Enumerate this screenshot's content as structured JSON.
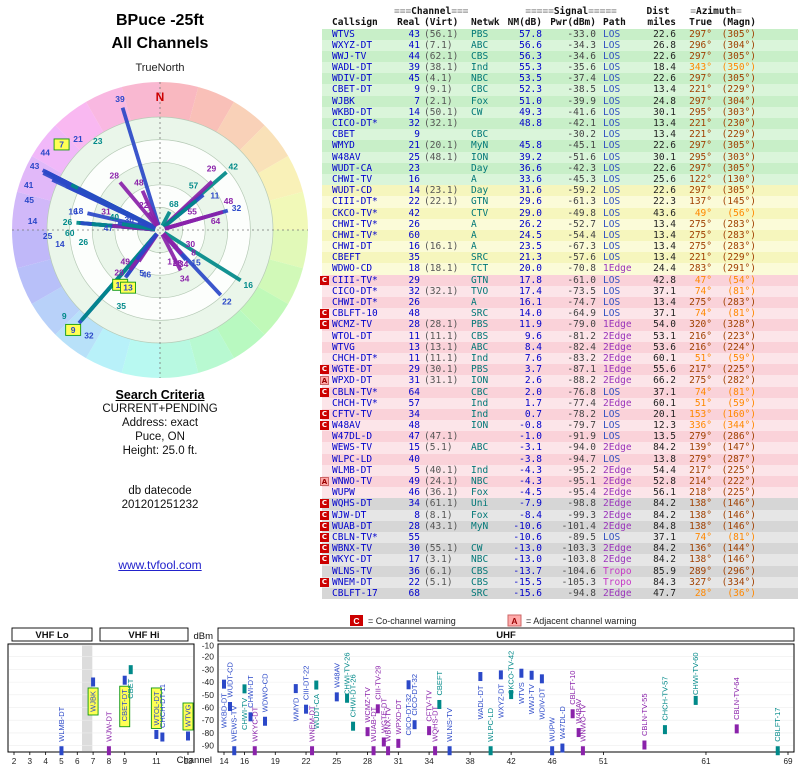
{
  "title": {
    "line1": "BPuce -25ft",
    "line2": "All Channels"
  },
  "radar": {
    "true_north": "TrueNorth",
    "north_label": "N"
  },
  "criteria": {
    "heading": "Search Criteria",
    "lines": [
      "CURRENT+PENDING",
      "Address: exact",
      "Puce, ON",
      "Height: 25.0 ft."
    ],
    "db_label": "db datecode",
    "db_code": "201201251232"
  },
  "link": "www.tvfool.com",
  "legend": {
    "c_label": "C",
    "c_text": "= Co-channel warning",
    "a_label": "A",
    "a_text": "= Adjacent channel warning"
  },
  "colors": {
    "warn_c": "#cc0000",
    "warn_a": "#ffaaaa",
    "link": "#2222cc",
    "north": "#cc0000",
    "highlight": "#ffff55",
    "los": "#2f4fc0",
    "edge": "#9a34bb",
    "tropo": "#c73bc7",
    "station_blue": "#2b48c8",
    "station_teal": "#008989",
    "station_purple": "#8a22aa",
    "az_normal": "#a04000",
    "az_hot": "#ff8800"
  },
  "table": {
    "group_headers": {
      "ch_bars_l": "≡≡≡",
      "channel": "Channel",
      "ch_bars_r": "≡≡≡",
      "sig_bars_l": "≡≡≡≡≡",
      "signal": "Signal",
      "sig_bars_r": "≡≡≡≡≡",
      "dist": "Dist",
      "az_bars_l": "≡",
      "azimuth": "Azimuth",
      "az_bars_r": "≡"
    },
    "col_headers": {
      "callsign": "Callsign",
      "real": "Real",
      "virt": "(Virt)",
      "netwk": "Netwk",
      "nm": "NM(dB)",
      "pwr": "Pwr(dBm)",
      "path": "Path",
      "miles": "miles",
      "true": "True",
      "magn": "(Magn)"
    },
    "row_fields": [
      "callsign",
      "real_ch",
      "virt_ch",
      "network",
      "nm_db",
      "pwr_dbm",
      "path",
      "dist_miles",
      "azimuth_true",
      "azimuth_magn",
      "warning",
      "azimuth_highlighted",
      "station_highlighted"
    ],
    "rows": [
      [
        "WTVS",
        "43",
        "(56.1)",
        "PBS",
        "57.8",
        "-33.0",
        "LOS",
        "22.6",
        "297°",
        "(305°)",
        "",
        0,
        0
      ],
      [
        "WXYZ-DT",
        "41",
        "(7.1)",
        "ABC",
        "56.6",
        "-34.3",
        "LOS",
        "26.8",
        "296°",
        "(304°)",
        "",
        0,
        0
      ],
      [
        "WWJ-TV",
        "44",
        "(62.1)",
        "CBS",
        "56.3",
        "-34.6",
        "LOS",
        "22.6",
        "297°",
        "(305°)",
        "",
        0,
        0
      ],
      [
        "WADL-DT",
        "39",
        "(38.1)",
        "Ind",
        "55.3",
        "-35.6",
        "LOS",
        "18.4",
        "343°",
        "(350°)",
        "",
        1,
        0
      ],
      [
        "WDIV-DT",
        "45",
        "(4.1)",
        "NBC",
        "53.5",
        "-37.4",
        "LOS",
        "22.6",
        "297°",
        "(305°)",
        "",
        0,
        0
      ],
      [
        "CBET-DT",
        "9",
        "(9.1)",
        "CBC",
        "52.3",
        "-38.5",
        "LOS",
        "13.4",
        "221°",
        "(229°)",
        "",
        0,
        1
      ],
      [
        "WJBK",
        "7",
        "(2.1)",
        "Fox",
        "51.0",
        "-39.9",
        "LOS",
        "24.8",
        "297°",
        "(304°)",
        "",
        0,
        1
      ],
      [
        "WKBD-DT",
        "14",
        "(50.1)",
        "CW",
        "49.3",
        "-41.6",
        "LOS",
        "30.1",
        "295°",
        "(303°)",
        "",
        0,
        0
      ],
      [
        "CICO-DT*",
        "32",
        "(32.1)",
        "",
        "48.8",
        "-42.1",
        "LOS",
        "13.4",
        "221°",
        "(230°)",
        "",
        0,
        0
      ],
      [
        "CBET",
        "9",
        "",
        "CBC",
        "",
        "-30.2",
        "LOS",
        "13.4",
        "221°",
        "(229°)",
        "",
        0,
        0
      ],
      [
        "WMYD",
        "21",
        "(20.1)",
        "MyN",
        "45.8",
        "-45.1",
        "LOS",
        "22.6",
        "297°",
        "(305°)",
        "",
        0,
        0
      ],
      [
        "W48AV",
        "25",
        "(48.1)",
        "ION",
        "39.2",
        "-51.6",
        "LOS",
        "30.1",
        "295°",
        "(303°)",
        "",
        0,
        0
      ],
      [
        "WUDT-CA",
        "23",
        "",
        "Day",
        "36.6",
        "-42.3",
        "LOS",
        "22.6",
        "297°",
        "(305°)",
        "",
        0,
        0
      ],
      [
        "CHWI-TV",
        "16",
        "",
        "A",
        "33.6",
        "-45.3",
        "LOS",
        "25.6",
        "122°",
        "(130°)",
        "",
        0,
        0
      ],
      [
        "WUDT-CD",
        "14",
        "(23.1)",
        "Day",
        "31.6",
        "-59.2",
        "LOS",
        "22.6",
        "297°",
        "(305°)",
        "",
        0,
        0
      ],
      [
        "CIII-DT*",
        "22",
        "(22.1)",
        "GTN",
        "29.6",
        "-61.3",
        "LOS",
        "22.3",
        "137°",
        "(145°)",
        "",
        0,
        0
      ],
      [
        "CKCO-TV*",
        "42",
        "",
        "CTV",
        "29.0",
        "-49.8",
        "LOS",
        "43.6",
        "49°",
        "(56°)",
        "",
        1,
        0
      ],
      [
        "CHWI-TV*",
        "26",
        "",
        "A",
        "26.2",
        "-52.7",
        "LOS",
        "13.4",
        "275°",
        "(283°)",
        "",
        0,
        0
      ],
      [
        "CHWI-TV*",
        "60",
        "",
        "A",
        "24.5",
        "-54.4",
        "LOS",
        "13.4",
        "275°",
        "(283°)",
        "",
        0,
        0
      ],
      [
        "CHWI-DT",
        "16",
        "(16.1)",
        "A",
        "23.5",
        "-67.3",
        "LOS",
        "13.4",
        "275°",
        "(283°)",
        "",
        0,
        0
      ],
      [
        "CBEFT",
        "35",
        "",
        "SRC",
        "21.3",
        "-57.6",
        "LOS",
        "13.4",
        "221°",
        "(229°)",
        "",
        0,
        0
      ],
      [
        "WDWO-CD",
        "18",
        "(18.1)",
        "TCT",
        "20.0",
        "-70.8",
        "1Edge",
        "24.4",
        "283°",
        "(291°)",
        "",
        0,
        0
      ],
      [
        "CIII-TV*",
        "29",
        "",
        "GTN",
        "17.8",
        "-61.0",
        "LOS",
        "42.8",
        "47°",
        "(54°)",
        "C",
        1,
        0
      ],
      [
        "CICO-DT*",
        "32",
        "(32.1)",
        "TVO",
        "17.4",
        "-73.5",
        "LOS",
        "37.1",
        "74°",
        "(81°)",
        "",
        1,
        0
      ],
      [
        "CHWI-DT*",
        "26",
        "",
        "A",
        "16.1",
        "-74.7",
        "LOS",
        "13.4",
        "275°",
        "(283°)",
        "",
        0,
        0
      ],
      [
        "CBLFT-10",
        "48",
        "",
        "SRC",
        "14.0",
        "-64.9",
        "LOS",
        "37.1",
        "74°",
        "(81°)",
        "C",
        1,
        0
      ],
      [
        "WCMZ-TV",
        "28",
        "(28.1)",
        "PBS",
        "11.9",
        "-79.0",
        "1Edge",
        "54.0",
        "320°",
        "(328°)",
        "C",
        0,
        0
      ],
      [
        "WTOL-DT",
        "11",
        "(11.1)",
        "CBS",
        "9.6",
        "-81.2",
        "2Edge",
        "53.1",
        "216°",
        "(223°)",
        "",
        0,
        1
      ],
      [
        "WTVG",
        "13",
        "(13.1)",
        "ABC",
        "8.4",
        "-82.4",
        "2Edge",
        "53.6",
        "216°",
        "(224°)",
        "",
        0,
        1
      ],
      [
        "CHCH-DT*",
        "11",
        "(11.1)",
        "Ind",
        "7.6",
        "-83.2",
        "2Edge",
        "60.1",
        "51°",
        "(59°)",
        "",
        1,
        0
      ],
      [
        "WGTE-DT",
        "29",
        "(30.1)",
        "PBS",
        "3.7",
        "-87.1",
        "1Edge",
        "55.6",
        "217°",
        "(225°)",
        "C",
        0,
        0
      ],
      [
        "WPXD-DT",
        "31",
        "(31.1)",
        "ION",
        "2.6",
        "-88.2",
        "2Edge",
        "66.2",
        "275°",
        "(282°)",
        "A",
        0,
        0
      ],
      [
        "CBLN-TV*",
        "64",
        "",
        "CBC",
        "2.0",
        "-76.8",
        "LOS",
        "37.1",
        "74°",
        "(81°)",
        "C",
        1,
        0
      ],
      [
        "CHCH-TV*",
        "57",
        "",
        "Ind",
        "1.7",
        "-77.4",
        "2Edge",
        "60.1",
        "51°",
        "(59°)",
        "",
        1,
        0
      ],
      [
        "CFTV-TV",
        "34",
        "",
        "Ind",
        "0.7",
        "-78.2",
        "LOS",
        "20.1",
        "153°",
        "(160°)",
        "C",
        1,
        0
      ],
      [
        "W48AV",
        "48",
        "",
        "ION",
        "-0.8",
        "-79.7",
        "LOS",
        "12.3",
        "336°",
        "(344°)",
        "C",
        1,
        0
      ],
      [
        "W47DL-D",
        "47",
        "(47.1)",
        "",
        "-1.0",
        "-91.9",
        "LOS",
        "13.5",
        "279°",
        "(286°)",
        "",
        0,
        0
      ],
      [
        "WEWS-TV",
        "15",
        "(5.1)",
        "ABC",
        "-3.1",
        "-94.0",
        "2Edge",
        "84.2",
        "139°",
        "(147°)",
        "",
        0,
        0
      ],
      [
        "WLPC-LD",
        "40",
        "",
        "",
        "-3.8",
        "-94.7",
        "LOS",
        "13.8",
        "279°",
        "(287°)",
        "",
        0,
        0
      ],
      [
        "WLMB-DT",
        "5",
        "(40.1)",
        "Ind",
        "-4.3",
        "-95.2",
        "2Edge",
        "54.4",
        "217°",
        "(225°)",
        "",
        0,
        0
      ],
      [
        "WNWO-TV",
        "49",
        "(24.1)",
        "NBC",
        "-4.3",
        "-95.1",
        "2Edge",
        "52.8",
        "214°",
        "(222°)",
        "A",
        0,
        0
      ],
      [
        "WUPW",
        "46",
        "(36.1)",
        "Fox",
        "-4.5",
        "-95.4",
        "2Edge",
        "56.1",
        "218°",
        "(225°)",
        "",
        0,
        0
      ],
      [
        "WQHS-DT",
        "34",
        "(61.1)",
        "Uni",
        "-7.9",
        "-98.8",
        "2Edge",
        "84.2",
        "138°",
        "(146°)",
        "C",
        0,
        0
      ],
      [
        "WJW-DT",
        "8",
        "(8.1)",
        "Fox",
        "-8.4",
        "-99.3",
        "2Edge",
        "84.2",
        "138°",
        "(146°)",
        "C",
        0,
        0
      ],
      [
        "WUAB-DT",
        "28",
        "(43.1)",
        "MyN",
        "-10.6",
        "-101.4",
        "2Edge",
        "84.8",
        "138°",
        "(146°)",
        "C",
        0,
        0
      ],
      [
        "CBLN-TV*",
        "55",
        "",
        "",
        "-10.6",
        "-89.5",
        "LOS",
        "37.1",
        "74°",
        "(81°)",
        "C",
        1,
        0
      ],
      [
        "WBNX-TV",
        "30",
        "(55.1)",
        "CW",
        "-13.0",
        "-103.3",
        "2Edge",
        "84.2",
        "136°",
        "(144°)",
        "C",
        0,
        0
      ],
      [
        "WKYC-DT",
        "17",
        "(3.1)",
        "NBC",
        "-13.0",
        "-103.8",
        "2Edge",
        "84.2",
        "138°",
        "(146°)",
        "C",
        0,
        0
      ],
      [
        "WLNS-TV",
        "36",
        "(6.1)",
        "CBS",
        "-13.7",
        "-104.6",
        "Tropo",
        "85.9",
        "289°",
        "(296°)",
        "",
        0,
        0
      ],
      [
        "WNEM-DT",
        "22",
        "(5.1)",
        "CBS",
        "-15.5",
        "-105.3",
        "Tropo",
        "84.3",
        "327°",
        "(334°)",
        "C",
        0,
        0
      ],
      [
        "CBLFT-17",
        "68",
        "",
        "SRC",
        "-15.6",
        "-94.8",
        "2Edge",
        "47.7",
        "28°",
        "(36°)",
        "",
        1,
        0
      ]
    ]
  },
  "chart": {
    "type": "scatter",
    "dbm_label": "dBm",
    "channel_label": "Channel",
    "y_ticks": [
      -10,
      -20,
      -30,
      -40,
      -50,
      -60,
      -70,
      -80,
      -90
    ],
    "left_ticks": [
      2,
      3,
      4,
      5,
      6,
      7,
      8,
      9,
      11,
      13
    ],
    "right_ticks": [
      14,
      16,
      19,
      22,
      25,
      28,
      31,
      34,
      38,
      42,
      46,
      51,
      61,
      69
    ],
    "bands": [
      "VHF Lo",
      "VHF Hi",
      "UHF"
    ]
  }
}
